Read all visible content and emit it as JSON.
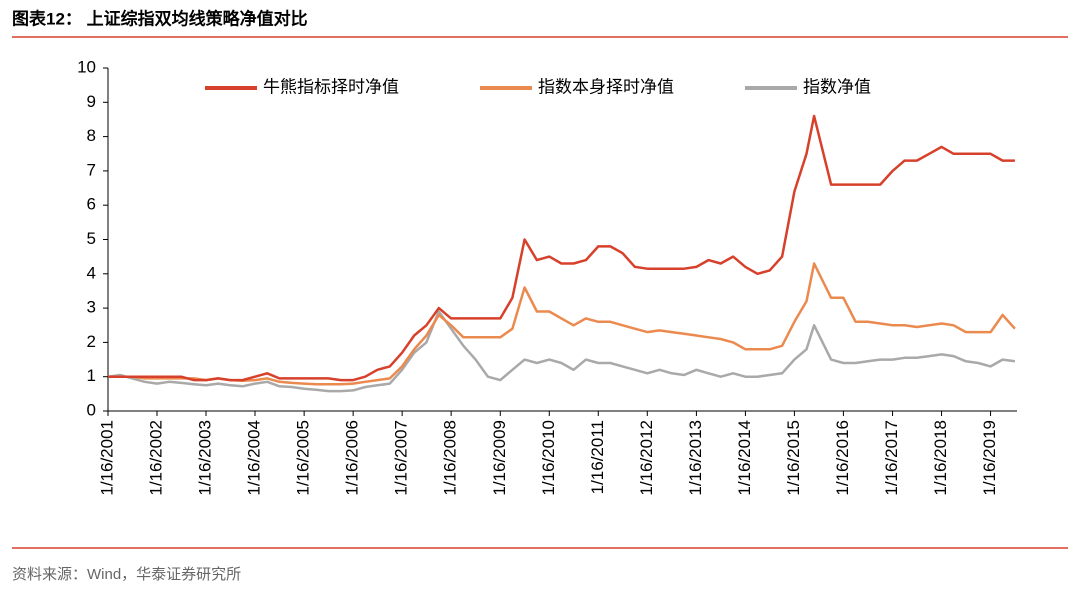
{
  "chart_data": {
    "type": "line",
    "title": "图表12： 上证综指双均线策略净值对比",
    "source": "资料来源：Wind，华泰证券研究所",
    "x": [
      "2001-01-16",
      "2001-04-16",
      "2001-07-16",
      "2001-10-16",
      "2002-01-16",
      "2002-04-16",
      "2002-07-16",
      "2002-10-16",
      "2003-01-16",
      "2003-04-16",
      "2003-07-16",
      "2003-10-16",
      "2004-01-16",
      "2004-04-16",
      "2004-07-16",
      "2004-10-16",
      "2005-01-16",
      "2005-04-16",
      "2005-07-16",
      "2005-10-16",
      "2006-01-16",
      "2006-04-16",
      "2006-07-16",
      "2006-10-16",
      "2007-01-16",
      "2007-04-16",
      "2007-07-16",
      "2007-10-16",
      "2008-01-16",
      "2008-04-16",
      "2008-07-16",
      "2008-10-16",
      "2009-01-16",
      "2009-04-16",
      "2009-07-16",
      "2009-10-16",
      "2010-01-16",
      "2010-04-16",
      "2010-07-16",
      "2010-10-16",
      "2011-01-16",
      "2011-04-16",
      "2011-07-16",
      "2011-10-16",
      "2012-01-16",
      "2012-04-16",
      "2012-07-16",
      "2012-10-16",
      "2013-01-16",
      "2013-04-16",
      "2013-07-16",
      "2013-10-16",
      "2014-01-16",
      "2014-04-16",
      "2014-07-16",
      "2014-10-16",
      "2015-01-16",
      "2015-04-16",
      "2015-06-12",
      "2015-10-16",
      "2016-01-16",
      "2016-04-16",
      "2016-07-16",
      "2016-10-16",
      "2017-01-16",
      "2017-04-16",
      "2017-07-16",
      "2017-10-16",
      "2018-01-16",
      "2018-04-16",
      "2018-07-16",
      "2018-10-16",
      "2019-01-16",
      "2019-04-16",
      "2019-07-16"
    ],
    "series": [
      {
        "name": "牛熊指标择时净值",
        "color": "#d7402b",
        "values": [
          1.0,
          1.0,
          1.0,
          1.0,
          1.0,
          1.0,
          1.0,
          0.9,
          0.9,
          0.95,
          0.9,
          0.9,
          1.0,
          1.1,
          0.95,
          0.95,
          0.95,
          0.95,
          0.95,
          0.9,
          0.9,
          1.0,
          1.2,
          1.3,
          1.7,
          2.2,
          2.5,
          3.0,
          2.7,
          2.7,
          2.7,
          2.7,
          2.7,
          3.3,
          5.0,
          4.4,
          4.5,
          4.3,
          4.3,
          4.4,
          4.8,
          4.8,
          4.6,
          4.2,
          4.15,
          4.15,
          4.15,
          4.15,
          4.2,
          4.4,
          4.3,
          4.5,
          4.2,
          4.0,
          4.1,
          4.5,
          6.4,
          7.5,
          8.6,
          6.6,
          6.6,
          6.6,
          6.6,
          6.6,
          7.0,
          7.3,
          7.3,
          7.5,
          7.7,
          7.5,
          7.5,
          7.5,
          7.5,
          7.3,
          7.3
        ]
      },
      {
        "name": "指数本身择时净值",
        "color": "#eb8a4f",
        "values": [
          1.0,
          1.0,
          1.0,
          0.95,
          0.95,
          0.95,
          0.95,
          0.95,
          0.9,
          0.95,
          0.9,
          0.88,
          0.9,
          0.95,
          0.85,
          0.82,
          0.8,
          0.78,
          0.78,
          0.78,
          0.8,
          0.85,
          0.9,
          0.95,
          1.3,
          1.8,
          2.2,
          2.8,
          2.5,
          2.15,
          2.15,
          2.15,
          2.15,
          2.4,
          3.6,
          2.9,
          2.9,
          2.7,
          2.5,
          2.7,
          2.6,
          2.6,
          2.5,
          2.4,
          2.3,
          2.35,
          2.3,
          2.25,
          2.2,
          2.15,
          2.1,
          2.0,
          1.8,
          1.8,
          1.8,
          1.9,
          2.6,
          3.2,
          4.3,
          3.3,
          3.3,
          2.6,
          2.6,
          2.55,
          2.5,
          2.5,
          2.45,
          2.5,
          2.55,
          2.5,
          2.3,
          2.3,
          2.3,
          2.8,
          2.4
        ]
      },
      {
        "name": "指数净值",
        "color": "#a9a9a9",
        "values": [
          1.0,
          1.05,
          0.95,
          0.85,
          0.8,
          0.85,
          0.82,
          0.78,
          0.75,
          0.8,
          0.75,
          0.72,
          0.8,
          0.85,
          0.72,
          0.7,
          0.65,
          0.62,
          0.58,
          0.58,
          0.6,
          0.7,
          0.75,
          0.8,
          1.2,
          1.7,
          2.0,
          2.9,
          2.4,
          1.9,
          1.5,
          1.0,
          0.9,
          1.2,
          1.5,
          1.4,
          1.5,
          1.4,
          1.2,
          1.5,
          1.4,
          1.4,
          1.3,
          1.2,
          1.1,
          1.2,
          1.1,
          1.05,
          1.2,
          1.1,
          1.0,
          1.1,
          1.0,
          1.0,
          1.05,
          1.1,
          1.5,
          1.8,
          2.5,
          1.5,
          1.4,
          1.4,
          1.45,
          1.5,
          1.5,
          1.55,
          1.55,
          1.6,
          1.65,
          1.6,
          1.45,
          1.4,
          1.3,
          1.5,
          1.45
        ]
      }
    ],
    "xlim": [
      "2001-01-16",
      "2019-08-01"
    ],
    "xticks": [
      {
        "value": "2001-01-16",
        "label": "1/16/2001"
      },
      {
        "value": "2002-01-16",
        "label": "1/16/2002"
      },
      {
        "value": "2003-01-16",
        "label": "1/16/2003"
      },
      {
        "value": "2004-01-16",
        "label": "1/16/2004"
      },
      {
        "value": "2005-01-16",
        "label": "1/16/2005"
      },
      {
        "value": "2006-01-16",
        "label": "1/16/2006"
      },
      {
        "value": "2007-01-16",
        "label": "1/16/2007"
      },
      {
        "value": "2008-01-16",
        "label": "1/16/2008"
      },
      {
        "value": "2009-01-16",
        "label": "1/16/2009"
      },
      {
        "value": "2010-01-16",
        "label": "1/16/2010"
      },
      {
        "value": "2011-01-16",
        "label": "1/16/2011"
      },
      {
        "value": "2012-01-16",
        "label": "1/16/2012"
      },
      {
        "value": "2013-01-16",
        "label": "1/16/2013"
      },
      {
        "value": "2014-01-16",
        "label": "1/16/2014"
      },
      {
        "value": "2015-01-16",
        "label": "1/16/2015"
      },
      {
        "value": "2016-01-16",
        "label": "1/16/2016"
      },
      {
        "value": "2017-01-16",
        "label": "1/16/2017"
      },
      {
        "value": "2018-01-16",
        "label": "1/16/2018"
      },
      {
        "value": "2019-01-16",
        "label": "1/16/2019"
      }
    ],
    "ylim": [
      0,
      10
    ],
    "yticks": [
      0,
      1,
      2,
      3,
      4,
      5,
      6,
      7,
      8,
      9,
      10
    ],
    "grid": false
  }
}
